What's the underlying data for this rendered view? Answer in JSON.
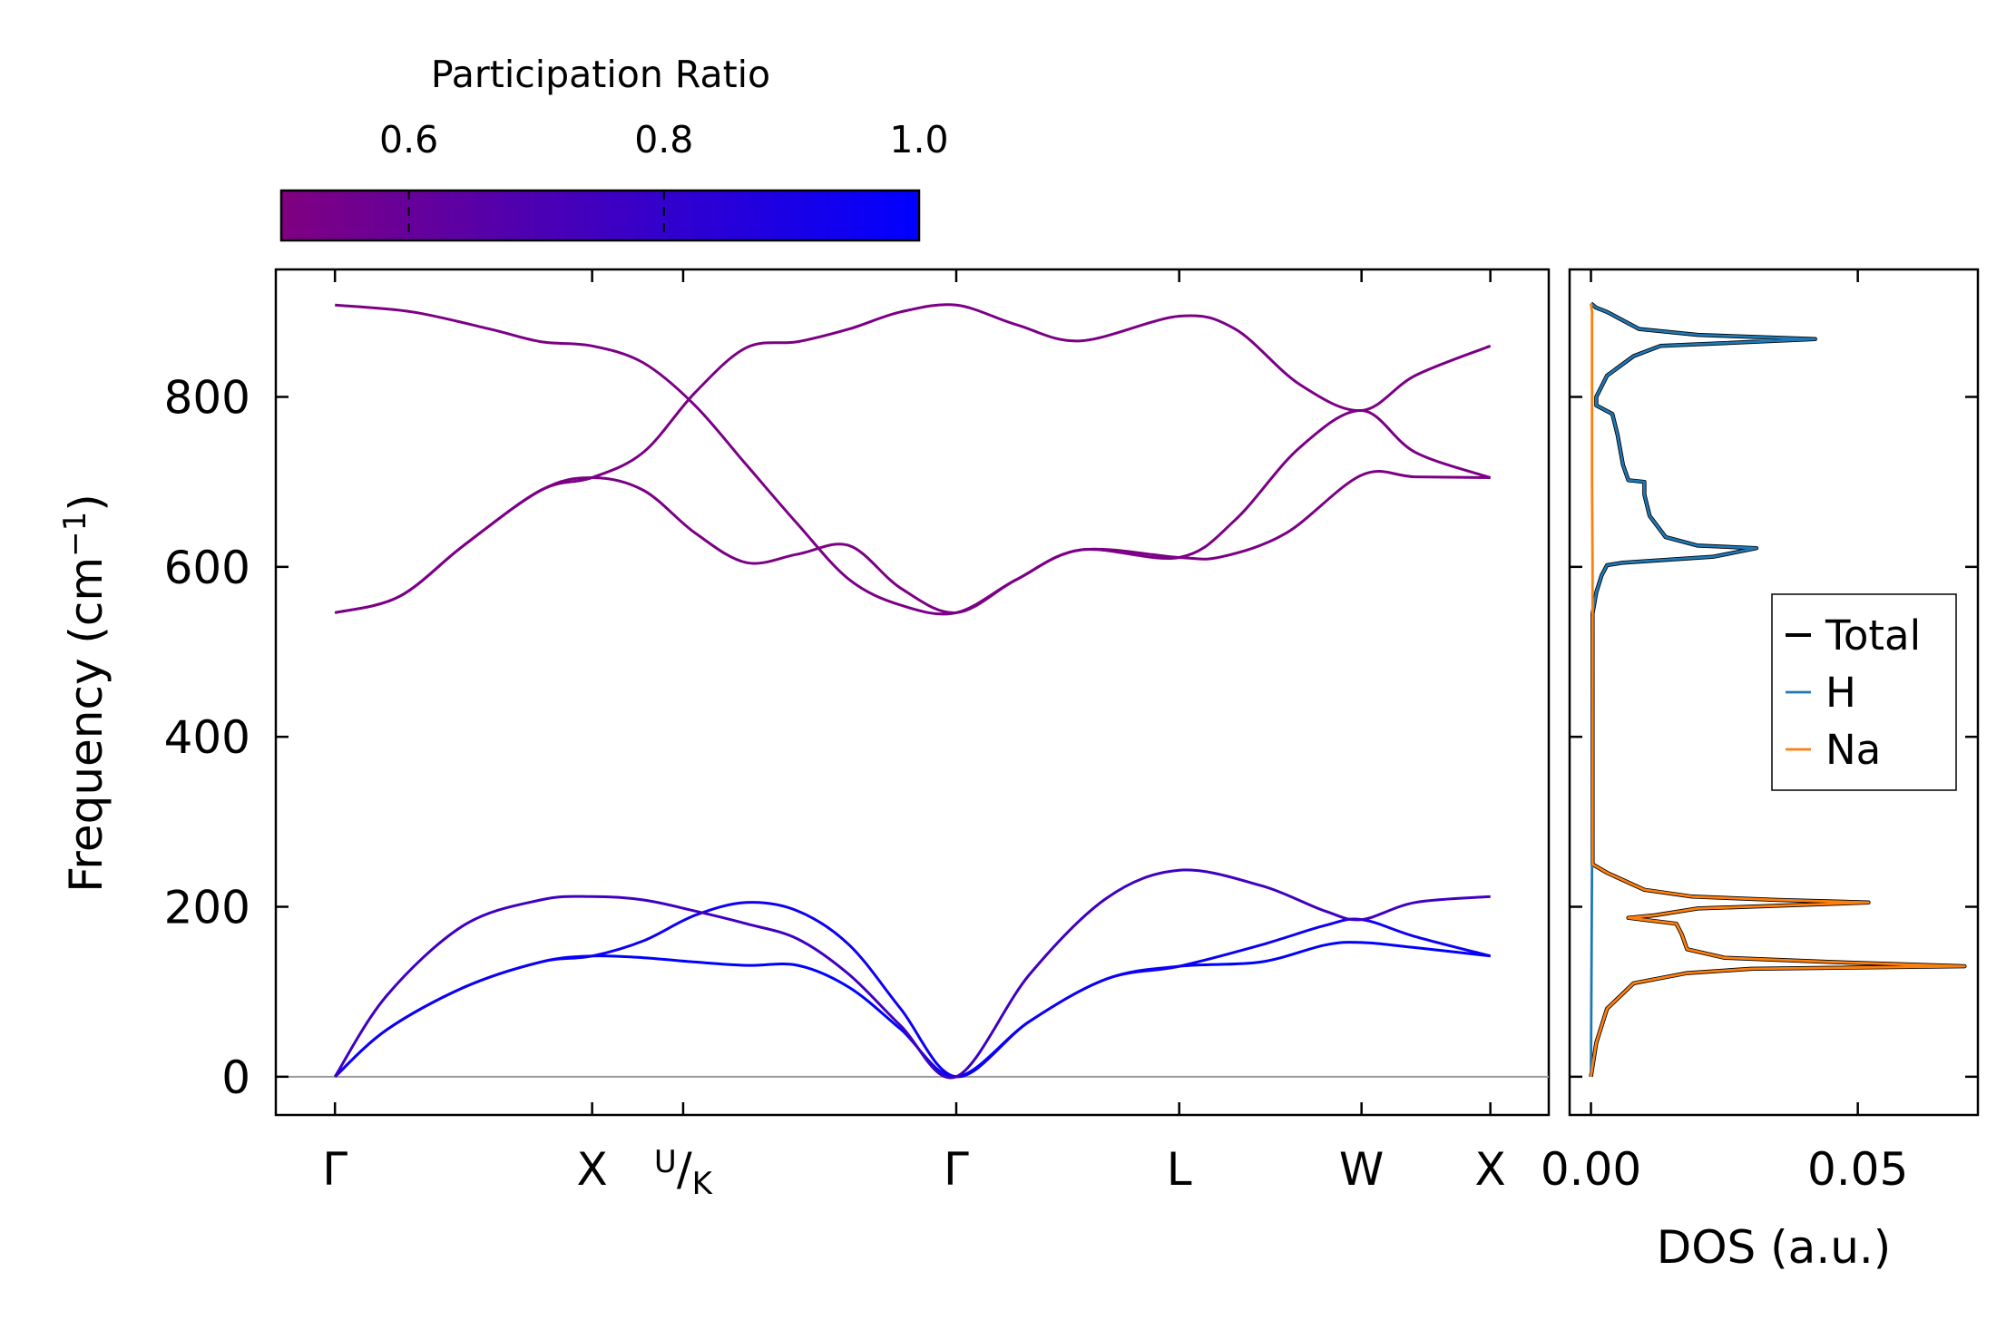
{
  "chart_data": [
    {
      "type": "line",
      "subtype": "phonon-band-structure",
      "title": "",
      "xlabel": "",
      "ylabel": "Frequency (cm",
      "ylabel_sup": "−1",
      "ylabel_end": ")",
      "ylim": [
        -45,
        950
      ],
      "y_ticks": [
        0,
        200,
        400,
        600,
        800
      ],
      "y_tick_labels": [
        "0",
        "200",
        "400",
        "600",
        "800"
      ],
      "q_labels": [
        "Γ",
        "X",
        "U",
        "K",
        "Γ",
        "L",
        "W",
        "X"
      ],
      "q_positions": [
        0,
        1.0,
        1.354,
        1.354,
        2.416,
        3.283,
        3.992,
        4.493
      ],
      "xlim": [
        -0.23,
        4.72
      ],
      "zero_line": 0,
      "colormap": {
        "from": "#800080",
        "to": "#0000ff"
      },
      "bands": [
        {
          "name": "acoustic-1",
          "participation": 1.0,
          "points": [
            [
              0,
              0
            ],
            [
              0.2,
              55
            ],
            [
              0.5,
              105
            ],
            [
              0.8,
              135
            ],
            [
              1.0,
              142
            ],
            [
              1.2,
              140
            ],
            [
              1.4,
              135
            ],
            [
              1.6,
              131
            ],
            [
              1.8,
              131
            ],
            [
              2.0,
              105
            ],
            [
              2.2,
              56
            ],
            [
              2.416,
              0
            ],
            [
              2.7,
              65
            ],
            [
              3.0,
              115
            ],
            [
              3.283,
              130
            ],
            [
              3.6,
              135
            ],
            [
              3.85,
              155
            ],
            [
              3.992,
              158
            ],
            [
              4.2,
              152
            ],
            [
              4.493,
              142
            ]
          ]
        },
        {
          "name": "acoustic-2",
          "participation": 0.95,
          "points": [
            [
              0,
              0
            ],
            [
              0.2,
              55
            ],
            [
              0.5,
              105
            ],
            [
              0.8,
              135
            ],
            [
              1.0,
              142
            ],
            [
              1.2,
              160
            ],
            [
              1.4,
              190
            ],
            [
              1.6,
              205
            ],
            [
              1.8,
              195
            ],
            [
              2.0,
              155
            ],
            [
              2.2,
              80
            ],
            [
              2.416,
              0
            ],
            [
              2.7,
              65
            ],
            [
              3.0,
              115
            ],
            [
              3.283,
              130
            ],
            [
              3.6,
              155
            ],
            [
              3.85,
              178
            ],
            [
              3.992,
              185
            ],
            [
              4.2,
              165
            ],
            [
              4.493,
              142
            ]
          ]
        },
        {
          "name": "acoustic-3",
          "participation": 0.75,
          "points": [
            [
              0,
              0
            ],
            [
              0.2,
              95
            ],
            [
              0.5,
              178
            ],
            [
              0.8,
              208
            ],
            [
              1.0,
              212
            ],
            [
              1.2,
              208
            ],
            [
              1.4,
              195
            ],
            [
              1.6,
              180
            ],
            [
              1.8,
              162
            ],
            [
              2.0,
              120
            ],
            [
              2.2,
              60
            ],
            [
              2.416,
              0
            ],
            [
              2.7,
              120
            ],
            [
              3.0,
              210
            ],
            [
              3.283,
              243
            ],
            [
              3.6,
              225
            ],
            [
              3.85,
              195
            ],
            [
              3.992,
              185
            ],
            [
              4.2,
              205
            ],
            [
              4.493,
              212
            ]
          ]
        },
        {
          "name": "optical-1",
          "participation": 0.52,
          "points": [
            [
              0,
              546
            ],
            [
              0.25,
              565
            ],
            [
              0.5,
              625
            ],
            [
              0.8,
              690
            ],
            [
              1.0,
              705
            ],
            [
              1.2,
              690
            ],
            [
              1.4,
              640
            ],
            [
              1.6,
              605
            ],
            [
              1.8,
              615
            ],
            [
              2.0,
              625
            ],
            [
              2.2,
              575
            ],
            [
              2.416,
              546
            ],
            [
              2.65,
              585
            ],
            [
              2.9,
              620
            ],
            [
              3.283,
              611
            ],
            [
              3.45,
              612
            ],
            [
              3.7,
              640
            ],
            [
              3.992,
              708
            ],
            [
              4.2,
              706
            ],
            [
              4.493,
              705
            ]
          ]
        },
        {
          "name": "optical-2",
          "participation": 0.52,
          "points": [
            [
              0,
              546
            ],
            [
              0.25,
              565
            ],
            [
              0.5,
              625
            ],
            [
              0.8,
              690
            ],
            [
              1.0,
              705
            ],
            [
              1.2,
              735
            ],
            [
              1.4,
              805
            ],
            [
              1.6,
              858
            ],
            [
              1.8,
              865
            ],
            [
              2.0,
              880
            ],
            [
              2.2,
              900
            ],
            [
              2.416,
              908
            ],
            [
              2.65,
              885
            ],
            [
              2.9,
              866
            ],
            [
              3.283,
              895
            ],
            [
              3.5,
              880
            ],
            [
              3.75,
              815
            ],
            [
              3.992,
              784
            ],
            [
              4.2,
              825
            ],
            [
              4.493,
              860
            ]
          ]
        },
        {
          "name": "optical-3",
          "participation": 0.52,
          "points": [
            [
              0,
              908
            ],
            [
              0.3,
              900
            ],
            [
              0.6,
              880
            ],
            [
              0.8,
              865
            ],
            [
              1.0,
              860
            ],
            [
              1.2,
              840
            ],
            [
              1.4,
              790
            ],
            [
              1.6,
              720
            ],
            [
              1.8,
              650
            ],
            [
              2.0,
              585
            ],
            [
              2.2,
              555
            ],
            [
              2.416,
              546
            ],
            [
              2.65,
              585
            ],
            [
              2.9,
              620
            ],
            [
              3.283,
              611
            ],
            [
              3.5,
              655
            ],
            [
              3.75,
              740
            ],
            [
              3.992,
              784
            ],
            [
              4.2,
              735
            ],
            [
              4.493,
              705
            ]
          ]
        }
      ]
    },
    {
      "type": "line",
      "subtype": "density-of-states",
      "xlabel": "DOS (a.u.)",
      "ylabel": "",
      "xlim": [
        -0.004,
        0.0725
      ],
      "ylim": [
        -45,
        950
      ],
      "x_ticks": [
        0.0,
        0.05
      ],
      "x_tick_labels": [
        "0.00",
        "0.05"
      ],
      "series": [
        {
          "name": "Total",
          "color": "#000000",
          "points": [
            [
              0,
              0
            ],
            [
              0.001,
              40
            ],
            [
              0.003,
              80
            ],
            [
              0.008,
              110
            ],
            [
              0.018,
              122
            ],
            [
              0.03,
              127
            ],
            [
              0.07,
              130
            ],
            [
              0.045,
              135
            ],
            [
              0.025,
              140
            ],
            [
              0.018,
              150
            ],
            [
              0.017,
              168
            ],
            [
              0.016,
              180
            ],
            [
              0.007,
              187
            ],
            [
              0.012,
              190
            ],
            [
              0.02,
              198
            ],
            [
              0.052,
              205
            ],
            [
              0.035,
              208
            ],
            [
              0.019,
              212
            ],
            [
              0.01,
              220
            ],
            [
              0.003,
              240
            ],
            [
              0.0003,
              250
            ],
            [
              0.0003,
              545
            ],
            [
              0.001,
              570
            ],
            [
              0.002,
              590
            ],
            [
              0.003,
              602
            ],
            [
              0.006,
              605
            ],
            [
              0.023,
              612
            ],
            [
              0.031,
              622
            ],
            [
              0.02,
              625
            ],
            [
              0.014,
              635
            ],
            [
              0.011,
              660
            ],
            [
              0.01,
              685
            ],
            [
              0.01,
              700
            ],
            [
              0.007,
              702
            ],
            [
              0.006,
              720
            ],
            [
              0.005,
              755
            ],
            [
              0.004,
              780
            ],
            [
              0.001,
              790
            ],
            [
              0.001,
              800
            ],
            [
              0.003,
              825
            ],
            [
              0.008,
              848
            ],
            [
              0.013,
              860
            ],
            [
              0.042,
              868
            ],
            [
              0.02,
              873
            ],
            [
              0.009,
              880
            ],
            [
              0.003,
              900
            ],
            [
              0.001,
              905
            ],
            [
              0.0,
              910
            ]
          ]
        },
        {
          "name": "H",
          "color": "#1f77b4",
          "points": [
            [
              0,
              0
            ],
            [
              0.0002,
              250
            ],
            [
              0.0003,
              545
            ],
            [
              0.001,
              570
            ],
            [
              0.002,
              590
            ],
            [
              0.003,
              602
            ],
            [
              0.006,
              605
            ],
            [
              0.023,
              612
            ],
            [
              0.031,
              622
            ],
            [
              0.02,
              625
            ],
            [
              0.014,
              635
            ],
            [
              0.011,
              660
            ],
            [
              0.01,
              685
            ],
            [
              0.01,
              700
            ],
            [
              0.007,
              702
            ],
            [
              0.006,
              720
            ],
            [
              0.005,
              755
            ],
            [
              0.004,
              780
            ],
            [
              0.001,
              790
            ],
            [
              0.001,
              800
            ],
            [
              0.003,
              825
            ],
            [
              0.008,
              848
            ],
            [
              0.013,
              860
            ],
            [
              0.042,
              868
            ],
            [
              0.02,
              873
            ],
            [
              0.009,
              880
            ],
            [
              0.003,
              900
            ],
            [
              0.001,
              905
            ],
            [
              0.0,
              910
            ]
          ]
        },
        {
          "name": "Na",
          "color": "#ff7f0e",
          "points": [
            [
              0,
              0
            ],
            [
              0.001,
              40
            ],
            [
              0.003,
              80
            ],
            [
              0.008,
              110
            ],
            [
              0.018,
              122
            ],
            [
              0.03,
              127
            ],
            [
              0.07,
              130
            ],
            [
              0.045,
              135
            ],
            [
              0.025,
              140
            ],
            [
              0.018,
              150
            ],
            [
              0.017,
              168
            ],
            [
              0.016,
              180
            ],
            [
              0.007,
              187
            ],
            [
              0.012,
              190
            ],
            [
              0.02,
              198
            ],
            [
              0.052,
              205
            ],
            [
              0.035,
              208
            ],
            [
              0.019,
              212
            ],
            [
              0.01,
              220
            ],
            [
              0.003,
              240
            ],
            [
              0.0003,
              250
            ],
            [
              0.0003,
              600
            ],
            [
              0.0002,
              700
            ],
            [
              0.0002,
              900
            ],
            [
              0.0,
              910
            ]
          ]
        }
      ],
      "legend": {
        "position": "center-right",
        "entries": [
          "Total",
          "H",
          "Na"
        ]
      }
    },
    {
      "type": "colorbar",
      "title": "Participation Ratio",
      "range": [
        0.5,
        1.0
      ],
      "ticks": [
        0.6,
        0.8,
        1.0
      ],
      "tick_labels": [
        "0.6",
        "0.8",
        "1.0"
      ],
      "colors": [
        "#800080",
        "#0000ff"
      ]
    }
  ]
}
